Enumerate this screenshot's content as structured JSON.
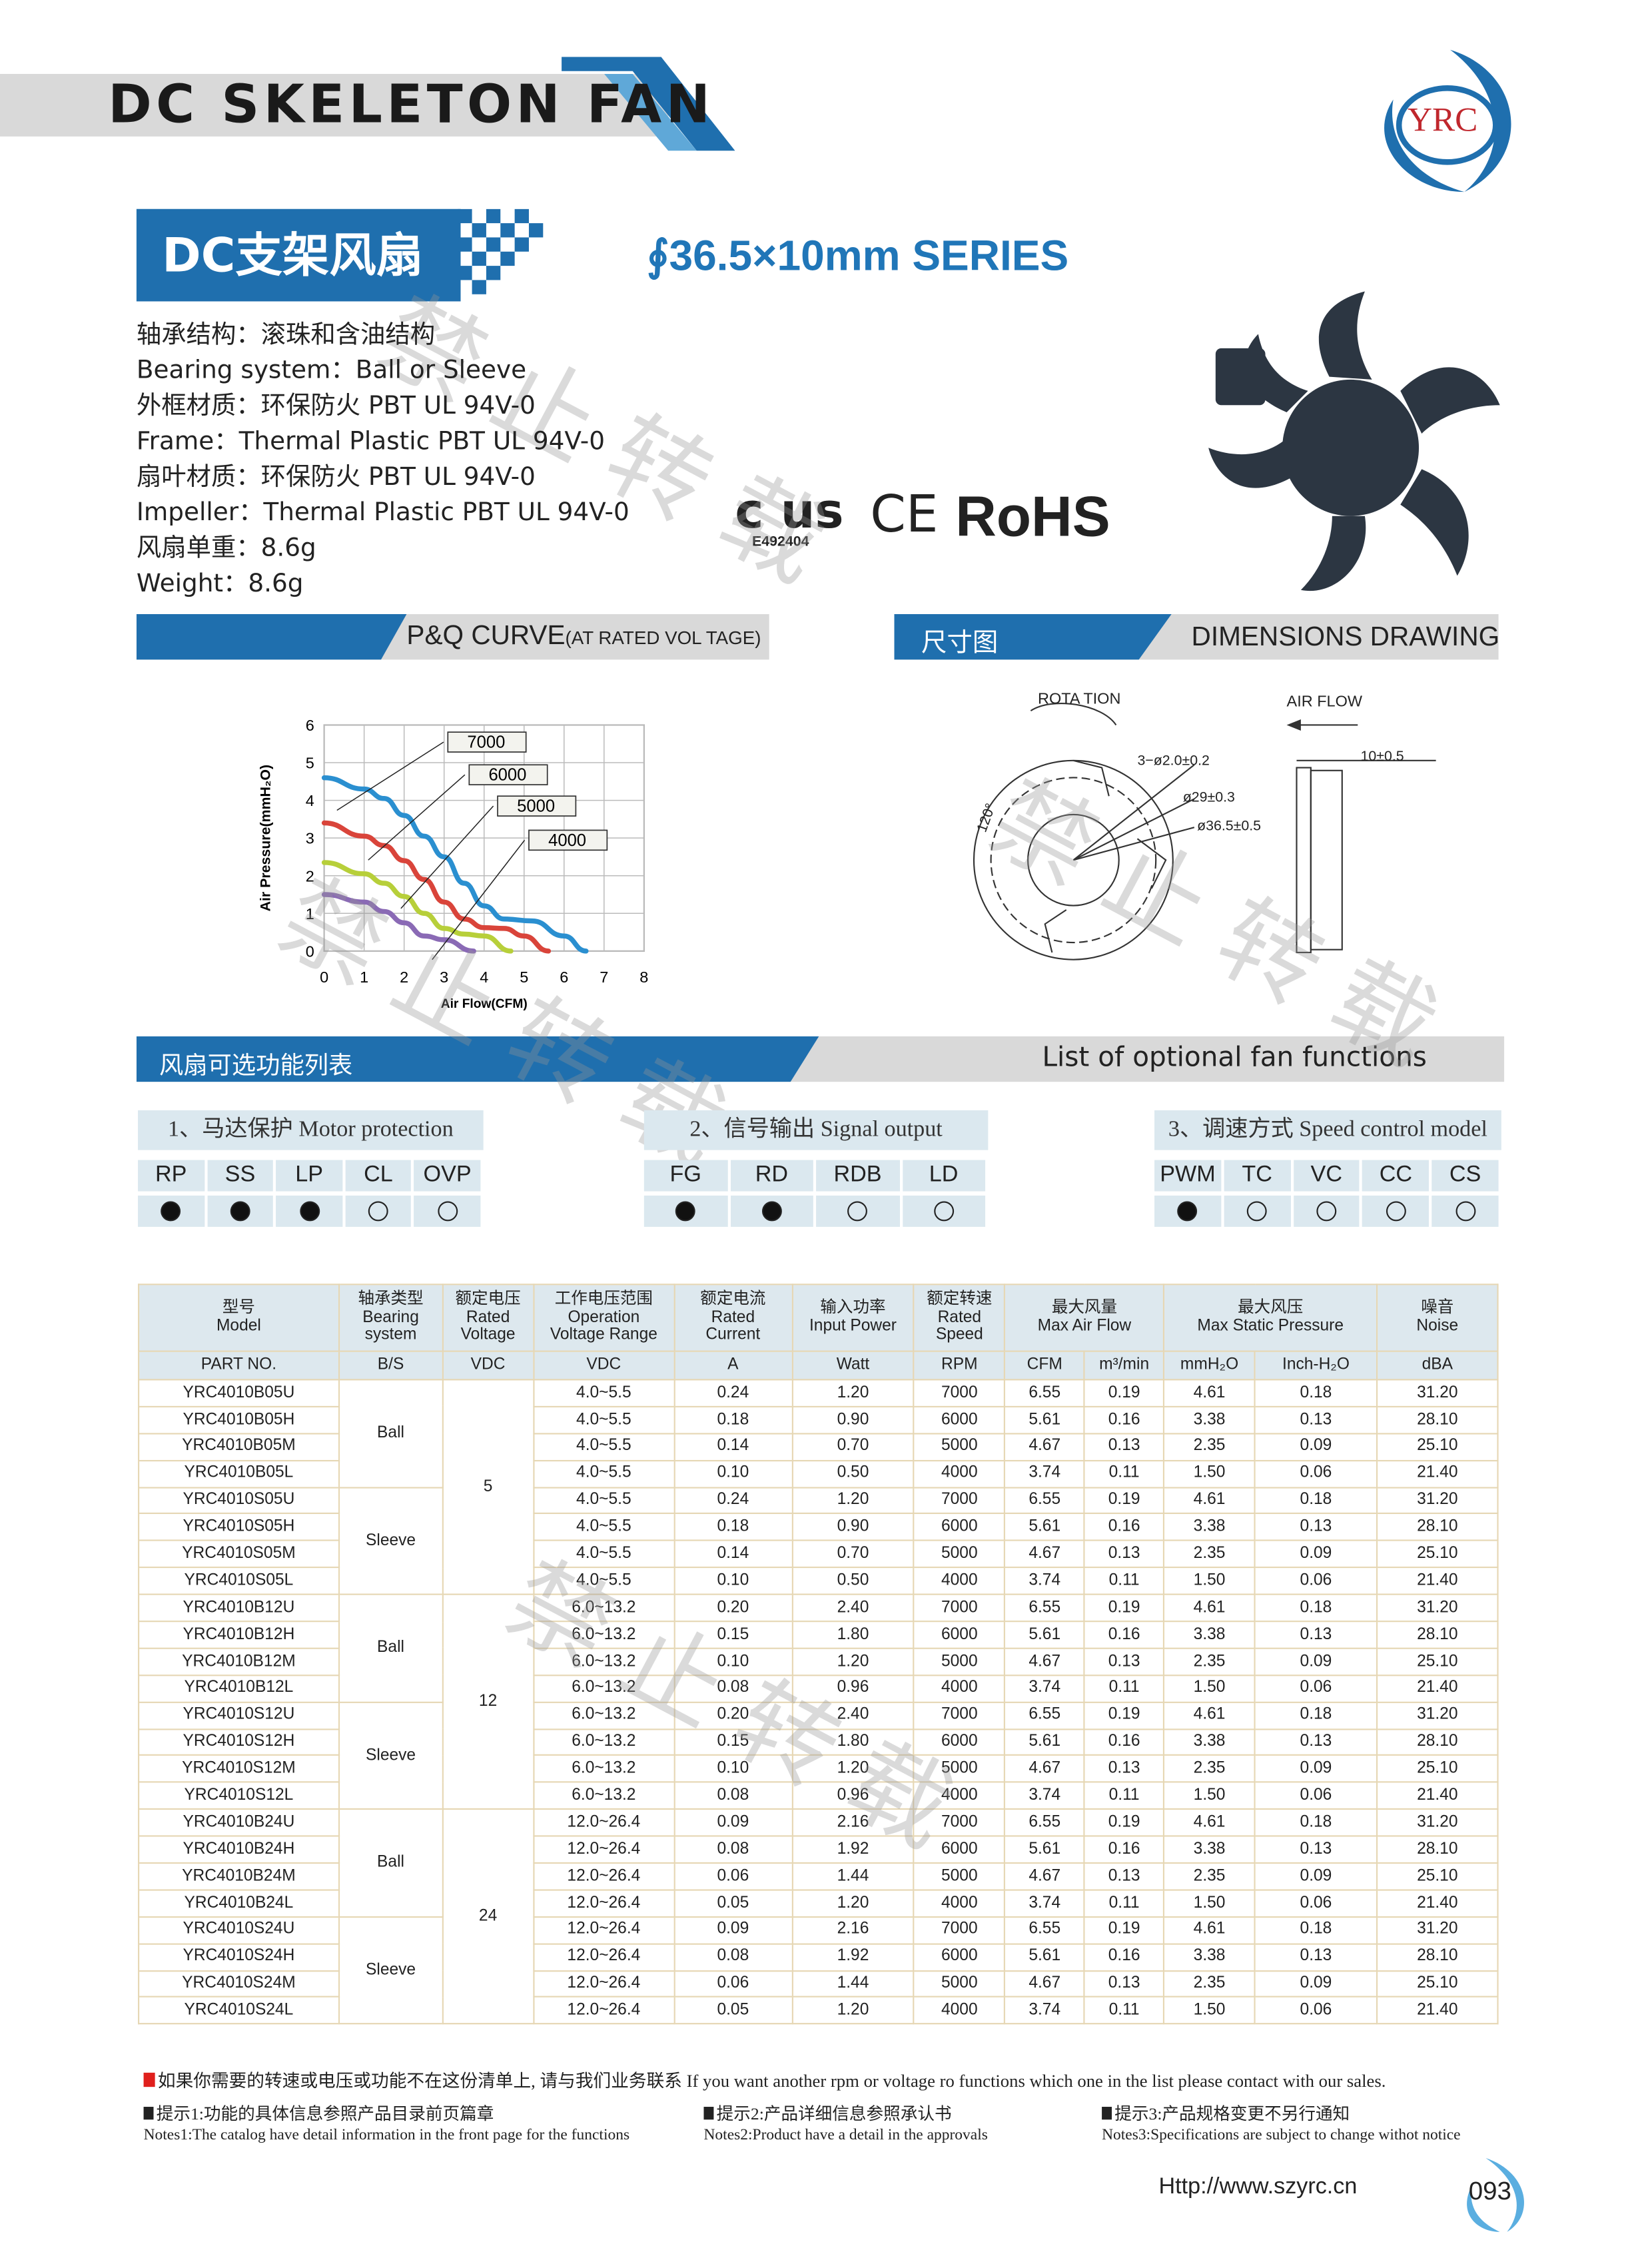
{
  "header": {
    "title": "DC SKELETON FAN",
    "logo_text": "YRC",
    "brand_color": "#1f6fae"
  },
  "product": {
    "cn_title": "DC支架风扇",
    "series": "∮36.5×10mm   SERIES"
  },
  "specs": [
    "轴承结构：滚珠和含油结构",
    "Bearing system：Ball or Sleeve",
    "外框材质：环保防火 PBT UL 94V-0",
    "Frame：Thermal Plastic PBT UL 94V-0",
    "扇叶材质：环保防火 PBT UL 94V-0",
    "Impeller：Thermal Plastic PBT UL 94V-0",
    "风扇单重：8.6g",
    "Weight：8.6g"
  ],
  "certs": {
    "ul": "c  us",
    "ul_no": "E492404",
    "ce": "CE",
    "rohs": "RoHS"
  },
  "sections": {
    "pq_main": "P&Q CURVE",
    "pq_sub": "(AT RATED VOL TAGE)",
    "dim_cn": "尺寸图",
    "dim_en": "DIMENSIONS  DRAWING",
    "func_cn": "风扇可选功能列表",
    "func_en": "List of optional fan functions"
  },
  "chart_data": {
    "type": "line",
    "xlabel": "Air Flow(CFM)",
    "ylabel": "Air Pressure(mmH₂O)",
    "xlim": [
      0,
      8
    ],
    "ylim": [
      0,
      6
    ],
    "xticks": [
      "0",
      "1",
      "2",
      "3",
      "4",
      "5",
      "6",
      "7",
      "8"
    ],
    "yticks": [
      "0",
      "1",
      "2",
      "3",
      "4",
      "5",
      "6"
    ],
    "grid": true,
    "series": [
      {
        "name": "7000",
        "color": "#2a8fd0",
        "x": [
          0,
          1,
          1.5,
          2,
          2.5,
          3,
          3.5,
          4,
          4.5,
          5.2,
          6,
          6.55
        ],
        "y": [
          4.6,
          4.3,
          4.05,
          3.6,
          3.05,
          2.5,
          1.8,
          1.2,
          0.85,
          0.8,
          0.4,
          0
        ]
      },
      {
        "name": "6000",
        "color": "#d9443a",
        "x": [
          0,
          1,
          1.5,
          2,
          2.5,
          3,
          3.5,
          4,
          4.5,
          5,
          5.61
        ],
        "y": [
          3.4,
          3.05,
          2.8,
          2.4,
          1.9,
          1.3,
          0.85,
          0.62,
          0.6,
          0.4,
          0
        ]
      },
      {
        "name": "5000",
        "color": "#b7cf3a",
        "x": [
          0,
          1,
          1.5,
          2,
          2.5,
          3,
          3.5,
          4,
          4.67
        ],
        "y": [
          2.35,
          2.05,
          1.8,
          1.45,
          1.0,
          0.6,
          0.45,
          0.4,
          0
        ]
      },
      {
        "name": "4000",
        "color": "#8a6ab5",
        "x": [
          0,
          1,
          1.5,
          2,
          2.5,
          3,
          3.74
        ],
        "y": [
          1.5,
          1.3,
          1.05,
          0.75,
          0.4,
          0.3,
          0
        ]
      }
    ]
  },
  "dimensions": {
    "rotation": "ROTA  TION",
    "air_flow": "AIR  FLOW",
    "holes": "3−ø2.0±0.2",
    "d1": "ø29±0.3",
    "d2": "ø36.5±0.5",
    "angle": "120°",
    "thickness": "10±0.5"
  },
  "functions": [
    {
      "title": "1、马达保护 Motor protection",
      "items": [
        {
          "label": "RP",
          "on": true
        },
        {
          "label": "SS",
          "on": true
        },
        {
          "label": "LP",
          "on": true
        },
        {
          "label": "CL",
          "on": false
        },
        {
          "label": "OVP",
          "on": false
        }
      ]
    },
    {
      "title": "2、信号输出 Signal output",
      "items": [
        {
          "label": "FG",
          "on": true
        },
        {
          "label": "RD",
          "on": true
        },
        {
          "label": "RDB",
          "on": false
        },
        {
          "label": "LD",
          "on": false
        }
      ]
    },
    {
      "title": "3、调速方式 Speed control model",
      "items": [
        {
          "label": "PWM",
          "on": true
        },
        {
          "label": "TC",
          "on": false
        },
        {
          "label": "VC",
          "on": false
        },
        {
          "label": "CC",
          "on": false
        },
        {
          "label": "CS",
          "on": false
        }
      ]
    }
  ],
  "table": {
    "headers": [
      [
        "型号",
        "Model"
      ],
      [
        "轴承类型",
        "Bearing",
        "system"
      ],
      [
        "额定电压",
        "Rated",
        "Voltage"
      ],
      [
        "工作电压范围",
        "Operation",
        "Voltage Range"
      ],
      [
        "额定电流",
        "Rated",
        "Current"
      ],
      [
        "输入功率",
        "Input Power"
      ],
      [
        "额定转速",
        "Rated",
        "Speed"
      ],
      [
        "最大风量",
        "Max Air Flow"
      ],
      [
        "最大风压",
        "Max Static Pressure"
      ],
      [
        "噪音",
        "Noise"
      ]
    ],
    "units": [
      "PART NO.",
      "B/S",
      "VDC",
      "VDC",
      "A",
      "Watt",
      "RPM",
      "CFM",
      "m³/min",
      "mmH₂O",
      "Inch-H₂O",
      "dBA"
    ],
    "bearing_groups": [
      "Ball",
      "Sleeve",
      "Ball",
      "Sleeve",
      "Ball",
      "Sleeve"
    ],
    "voltage_groups": [
      "5",
      "12",
      "24"
    ],
    "rows": [
      [
        "YRC4010B05U",
        "4.0~5.5",
        "0.24",
        "1.20",
        "7000",
        "6.55",
        "0.19",
        "4.61",
        "0.18",
        "31.20"
      ],
      [
        "YRC4010B05H",
        "4.0~5.5",
        "0.18",
        "0.90",
        "6000",
        "5.61",
        "0.16",
        "3.38",
        "0.13",
        "28.10"
      ],
      [
        "YRC4010B05M",
        "4.0~5.5",
        "0.14",
        "0.70",
        "5000",
        "4.67",
        "0.13",
        "2.35",
        "0.09",
        "25.10"
      ],
      [
        "YRC4010B05L",
        "4.0~5.5",
        "0.10",
        "0.50",
        "4000",
        "3.74",
        "0.11",
        "1.50",
        "0.06",
        "21.40"
      ],
      [
        "YRC4010S05U",
        "4.0~5.5",
        "0.24",
        "1.20",
        "7000",
        "6.55",
        "0.19",
        "4.61",
        "0.18",
        "31.20"
      ],
      [
        "YRC4010S05H",
        "4.0~5.5",
        "0.18",
        "0.90",
        "6000",
        "5.61",
        "0.16",
        "3.38",
        "0.13",
        "28.10"
      ],
      [
        "YRC4010S05M",
        "4.0~5.5",
        "0.14",
        "0.70",
        "5000",
        "4.67",
        "0.13",
        "2.35",
        "0.09",
        "25.10"
      ],
      [
        "YRC4010S05L",
        "4.0~5.5",
        "0.10",
        "0.50",
        "4000",
        "3.74",
        "0.11",
        "1.50",
        "0.06",
        "21.40"
      ],
      [
        "YRC4010B12U",
        "6.0~13.2",
        "0.20",
        "2.40",
        "7000",
        "6.55",
        "0.19",
        "4.61",
        "0.18",
        "31.20"
      ],
      [
        "YRC4010B12H",
        "6.0~13.2",
        "0.15",
        "1.80",
        "6000",
        "5.61",
        "0.16",
        "3.38",
        "0.13",
        "28.10"
      ],
      [
        "YRC4010B12M",
        "6.0~13.2",
        "0.10",
        "1.20",
        "5000",
        "4.67",
        "0.13",
        "2.35",
        "0.09",
        "25.10"
      ],
      [
        "YRC4010B12L",
        "6.0~13.2",
        "0.08",
        "0.96",
        "4000",
        "3.74",
        "0.11",
        "1.50",
        "0.06",
        "21.40"
      ],
      [
        "YRC4010S12U",
        "6.0~13.2",
        "0.20",
        "2.40",
        "7000",
        "6.55",
        "0.19",
        "4.61",
        "0.18",
        "31.20"
      ],
      [
        "YRC4010S12H",
        "6.0~13.2",
        "0.15",
        "1.80",
        "6000",
        "5.61",
        "0.16",
        "3.38",
        "0.13",
        "28.10"
      ],
      [
        "YRC4010S12M",
        "6.0~13.2",
        "0.10",
        "1.20",
        "5000",
        "4.67",
        "0.13",
        "2.35",
        "0.09",
        "25.10"
      ],
      [
        "YRC4010S12L",
        "6.0~13.2",
        "0.08",
        "0.96",
        "4000",
        "3.74",
        "0.11",
        "1.50",
        "0.06",
        "21.40"
      ],
      [
        "YRC4010B24U",
        "12.0~26.4",
        "0.09",
        "2.16",
        "7000",
        "6.55",
        "0.19",
        "4.61",
        "0.18",
        "31.20"
      ],
      [
        "YRC4010B24H",
        "12.0~26.4",
        "0.08",
        "1.92",
        "6000",
        "5.61",
        "0.16",
        "3.38",
        "0.13",
        "28.10"
      ],
      [
        "YRC4010B24M",
        "12.0~26.4",
        "0.06",
        "1.44",
        "5000",
        "4.67",
        "0.13",
        "2.35",
        "0.09",
        "25.10"
      ],
      [
        "YRC4010B24L",
        "12.0~26.4",
        "0.05",
        "1.20",
        "4000",
        "3.74",
        "0.11",
        "1.50",
        "0.06",
        "21.40"
      ],
      [
        "YRC4010S24U",
        "12.0~26.4",
        "0.09",
        "2.16",
        "7000",
        "6.55",
        "0.19",
        "4.61",
        "0.18",
        "31.20"
      ],
      [
        "YRC4010S24H",
        "12.0~26.4",
        "0.08",
        "1.92",
        "6000",
        "5.61",
        "0.16",
        "3.38",
        "0.13",
        "28.10"
      ],
      [
        "YRC4010S24M",
        "12.0~26.4",
        "0.06",
        "1.44",
        "5000",
        "4.67",
        "0.13",
        "2.35",
        "0.09",
        "25.10"
      ],
      [
        "YRC4010S24L",
        "12.0~26.4",
        "0.05",
        "1.20",
        "4000",
        "3.74",
        "0.11",
        "1.50",
        "0.06",
        "21.40"
      ]
    ]
  },
  "footer": {
    "contact_note": "如果你需要的转速或电压或功能不在这份清单上, 请与我们业务联系 If you want another rpm or voltage ro functions which one in the list please contact with our sales.",
    "tips": [
      {
        "cn": "提示1:功能的具体信息参照产品目录前页篇章",
        "en": "Notes1:The catalog have detail information in the front page for the functions"
      },
      {
        "cn": "提示2:产品详细信息参照承认书",
        "en": "Notes2:Product have a detail in the approvals"
      },
      {
        "cn": "提示3:产品规格变更不另行通知",
        "en": "Notes3:Specifications are subject to change withot notice"
      }
    ],
    "url": "Http://www.szyrc.cn",
    "page": "093"
  },
  "watermark": "禁止转载"
}
